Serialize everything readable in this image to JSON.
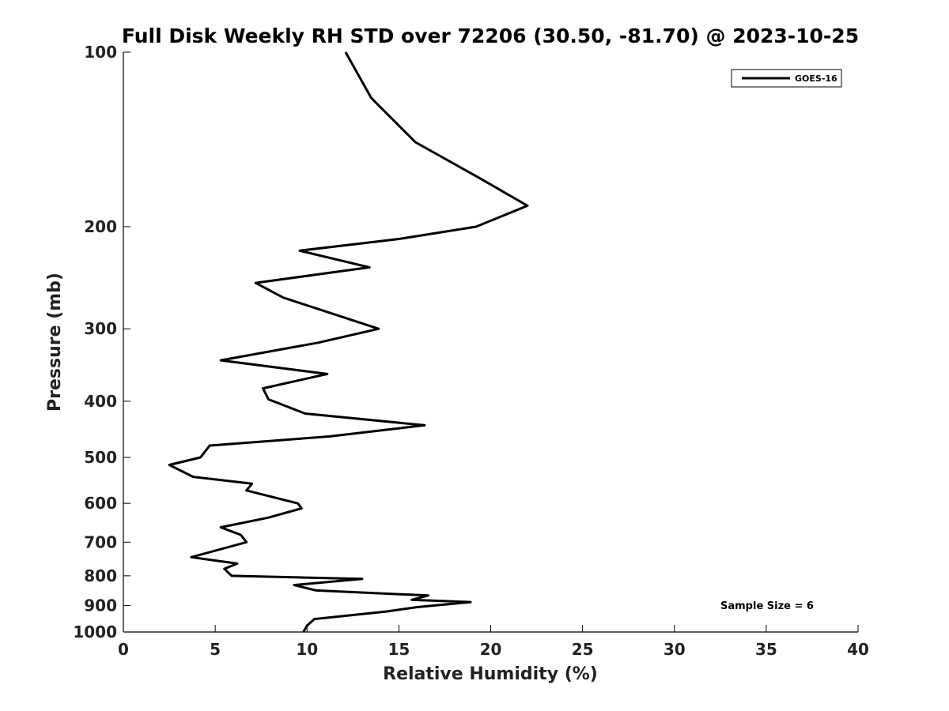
{
  "chart_data": {
    "type": "line",
    "title": "Full Disk Weekly RH STD over 72206 (30.50, -81.70) @ 2023-10-25",
    "xlabel": "Relative Humidity (%)",
    "ylabel": "Pressure (mb)",
    "xlim": [
      0,
      40
    ],
    "ylim": [
      1000,
      100
    ],
    "yscale": "log",
    "x_ticks": [
      0,
      5,
      10,
      15,
      20,
      25,
      30,
      35,
      40
    ],
    "y_ticks": [
      100,
      200,
      300,
      400,
      500,
      600,
      700,
      800,
      900,
      1000
    ],
    "grid": false,
    "legend": {
      "position": "top-right",
      "entries": [
        "GOES-16"
      ]
    },
    "series": [
      {
        "name": "GOES-16",
        "color": "#000000",
        "points": [
          [
            12.1,
            100
          ],
          [
            13.5,
            120
          ],
          [
            15.9,
            143
          ],
          [
            19.4,
            165
          ],
          [
            22.0,
            184
          ],
          [
            19.2,
            200
          ],
          [
            15.0,
            210
          ],
          [
            9.6,
            220
          ],
          [
            13.4,
            235
          ],
          [
            7.2,
            250
          ],
          [
            8.7,
            265
          ],
          [
            13.9,
            300
          ],
          [
            10.6,
            317
          ],
          [
            5.3,
            340
          ],
          [
            11.1,
            359
          ],
          [
            7.6,
            380
          ],
          [
            7.9,
            397
          ],
          [
            9.9,
            420
          ],
          [
            16.4,
            440
          ],
          [
            11.2,
            460
          ],
          [
            4.7,
            477
          ],
          [
            4.2,
            500
          ],
          [
            2.5,
            515
          ],
          [
            3.8,
            540
          ],
          [
            7.0,
            555
          ],
          [
            6.7,
            570
          ],
          [
            9.5,
            600
          ],
          [
            9.7,
            612
          ],
          [
            7.9,
            635
          ],
          [
            5.3,
            660
          ],
          [
            6.4,
            680
          ],
          [
            6.7,
            700
          ],
          [
            3.7,
            743
          ],
          [
            6.2,
            762
          ],
          [
            5.5,
            778
          ],
          [
            5.9,
            800
          ],
          [
            13.0,
            810
          ],
          [
            9.3,
            830
          ],
          [
            10.5,
            848
          ],
          [
            16.6,
            865
          ],
          [
            15.7,
            880
          ],
          [
            18.9,
            888
          ],
          [
            16.0,
            906
          ],
          [
            14.3,
            922
          ],
          [
            10.4,
            950
          ],
          [
            10.0,
            975
          ],
          [
            9.8,
            1000
          ]
        ]
      }
    ],
    "annotations": [
      "Sample Size = 6"
    ]
  }
}
